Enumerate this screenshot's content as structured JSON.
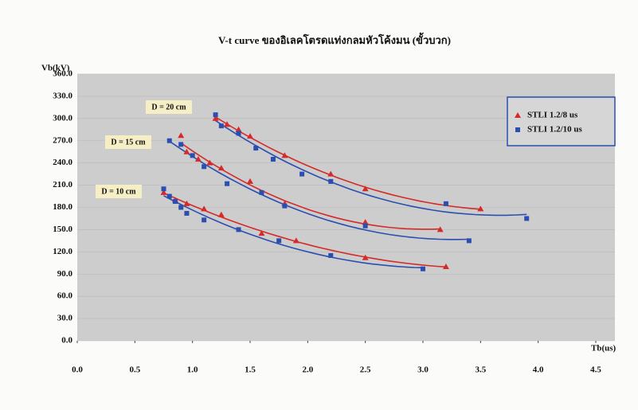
{
  "chart_data": {
    "type": "scatter",
    "title": "V-t curve ของอิเลคโตรดแท่งกลมหัวโค้งมน (ขั้วบวก)",
    "y_label": "Vb(kV)",
    "x_label": "Tb(us)",
    "xlim": [
      0,
      4.5
    ],
    "xticks": [
      {
        "value": 0,
        "label": "0.0"
      },
      0.5,
      {
        "value": 1,
        "label": "1.0"
      },
      1.5,
      {
        "value": 2,
        "label": "2.0"
      },
      2.5,
      {
        "value": 3,
        "label": "3.0"
      },
      3.5,
      {
        "value": 4,
        "label": "4.0"
      },
      4.5
    ],
    "ylim": [
      0,
      360
    ],
    "yticks": [
      {
        "value": 0,
        "label": "0.0"
      },
      {
        "value": 30,
        "label": "30.0"
      },
      {
        "value": 60,
        "label": "60.0"
      },
      {
        "value": 90,
        "label": "90.0"
      },
      {
        "value": 120,
        "label": "120.0"
      },
      {
        "value": 150,
        "label": "150.0"
      },
      {
        "value": 180,
        "label": "180.0"
      },
      {
        "value": 210,
        "label": "210.0"
      },
      {
        "value": 240,
        "label": "240.0"
      },
      {
        "value": 270,
        "label": "270.0"
      },
      {
        "value": 300,
        "label": "300.0"
      },
      {
        "value": 330,
        "label": "330.0"
      },
      {
        "value": 360,
        "label": "360.0"
      }
    ],
    "grid": true,
    "legend": "top-right",
    "annotations": [
      "D = 20 cm",
      "D = 15 cm",
      "D = 10 cm"
    ],
    "series": [
      {
        "name": "STLI 1.2/8 us",
        "color": "#d42a2a",
        "marker": "triangle",
        "x": [
          0.75,
          0.85,
          0.95,
          1.1,
          1.25,
          1.6,
          1.9,
          2.5,
          3.2,
          0.9,
          0.95,
          1.05,
          1.15,
          1.25,
          1.5,
          1.8,
          2.5,
          3.15,
          1.2,
          1.3,
          1.4,
          1.5,
          1.8,
          2.2,
          2.5,
          3.5
        ],
        "values": [
          200,
          190,
          185,
          178,
          170,
          145,
          135,
          112,
          100,
          277,
          255,
          245,
          240,
          233,
          215,
          185,
          160,
          150,
          300,
          292,
          285,
          276,
          250,
          225,
          205,
          178
        ]
      },
      {
        "name": "STLI 1.2/10 us",
        "color": "#2a4fb0",
        "marker": "square",
        "x": [
          0.75,
          0.8,
          0.85,
          0.9,
          0.95,
          1.1,
          1.4,
          1.75,
          2.2,
          3.0,
          0.8,
          0.9,
          1.0,
          1.1,
          1.3,
          1.6,
          1.8,
          2.5,
          3.4,
          1.2,
          1.25,
          1.4,
          1.55,
          1.7,
          1.95,
          2.2,
          3.2,
          3.9
        ],
        "values": [
          205,
          195,
          188,
          180,
          172,
          163,
          150,
          135,
          115,
          97,
          270,
          265,
          250,
          235,
          212,
          200,
          182,
          155,
          135,
          305,
          290,
          280,
          260,
          245,
          225,
          215,
          185,
          165
        ]
      }
    ]
  }
}
